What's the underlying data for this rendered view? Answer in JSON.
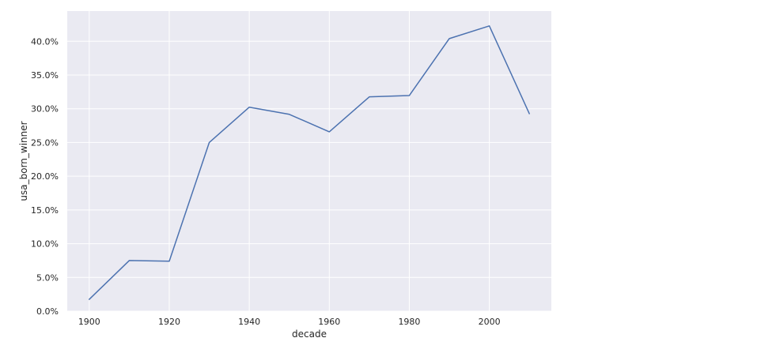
{
  "chart_data": {
    "type": "line",
    "xlabel": "decade",
    "ylabel": "usa_born_winner",
    "xlim": [
      1894.5,
      2015.5
    ],
    "ylim": [
      0.0,
      0.4448
    ],
    "x_ticks": [
      1900,
      1920,
      1940,
      1960,
      1980,
      2000
    ],
    "x_tick_labels": [
      "1900",
      "1920",
      "1940",
      "1960",
      "1980",
      "2000"
    ],
    "y_ticks": [
      0.0,
      0.05,
      0.1,
      0.15,
      0.2,
      0.25,
      0.3,
      0.35,
      0.4
    ],
    "y_tick_labels": [
      "0.0%",
      "5.0%",
      "10.0%",
      "15.0%",
      "20.0%",
      "25.0%",
      "30.0%",
      "35.0%",
      "40.0%"
    ],
    "grid": true,
    "legend": "none",
    "colors": {
      "line": "#4c72b0",
      "plot_background": "#eaeaf2",
      "grid": "#ffffff"
    },
    "series": [
      {
        "x": [
          1900,
          1910,
          1920,
          1930,
          1940,
          1950,
          1960,
          1970,
          1980,
          1990,
          2000,
          2010
        ],
        "values": [
          0.0175,
          0.075,
          0.0741,
          0.25,
          0.3023,
          0.2917,
          0.2658,
          0.3176,
          0.3196,
          0.404,
          0.4228,
          0.2927
        ]
      }
    ]
  }
}
